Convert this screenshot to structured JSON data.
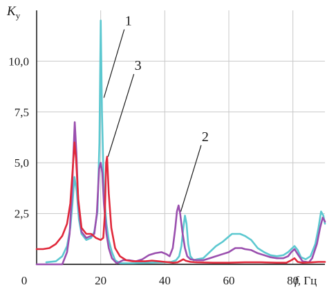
{
  "chart_data": {
    "type": "line",
    "ylabel": "K",
    "ylabel_sub": "у",
    "xlabel_var": "f",
    "xlabel_unit": ", Гц",
    "xlim": [
      0,
      90
    ],
    "ylim": [
      0,
      12.5
    ],
    "x_ticks": [
      0,
      20,
      40,
      60,
      80
    ],
    "y_ticks": [
      2.5,
      5.0,
      7.5,
      10.0
    ],
    "x_tick_labels": [
      "0",
      "20",
      "40",
      "60",
      "80"
    ],
    "y_tick_labels": [
      "2,5",
      "5,0",
      "7,5",
      "10,0"
    ],
    "grid": true,
    "annotations": [
      {
        "text": "1",
        "x": 28,
        "y": 11.7,
        "target": [
          21.0,
          8.2
        ]
      },
      {
        "text": "3",
        "x": 31,
        "y": 9.5,
        "target": [
          22.3,
          5.3
        ]
      },
      {
        "text": "2",
        "x": 52,
        "y": 6.0,
        "target": [
          45.0,
          2.6
        ]
      }
    ],
    "series": [
      {
        "name": "1",
        "color": "#5cc8d0",
        "points": [
          [
            3,
            0.1
          ],
          [
            6,
            0.15
          ],
          [
            8,
            0.4
          ],
          [
            9.5,
            0.9
          ],
          [
            10.5,
            1.8
          ],
          [
            11.2,
            3.0
          ],
          [
            11.8,
            4.3
          ],
          [
            12.5,
            3.6
          ],
          [
            13.2,
            2.2
          ],
          [
            14,
            1.5
          ],
          [
            15.5,
            1.2
          ],
          [
            17,
            1.3
          ],
          [
            18,
            1.6
          ],
          [
            19,
            2.6
          ],
          [
            19.6,
            6.0
          ],
          [
            20.0,
            12.0
          ],
          [
            20.4,
            7.5
          ],
          [
            21,
            3.5
          ],
          [
            21.8,
            2.0
          ],
          [
            22.5,
            1.2
          ],
          [
            23.5,
            0.6
          ],
          [
            24.5,
            0.2
          ],
          [
            26,
            0.05
          ],
          [
            30,
            0.05
          ],
          [
            35,
            0.08
          ],
          [
            40,
            0.1
          ],
          [
            42,
            0.12
          ],
          [
            43.5,
            0.2
          ],
          [
            44.5,
            0.4
          ],
          [
            45.2,
            0.9
          ],
          [
            45.8,
            1.8
          ],
          [
            46.3,
            2.4
          ],
          [
            46.8,
            2.0
          ],
          [
            47.3,
            1.0
          ],
          [
            48,
            0.4
          ],
          [
            49,
            0.2
          ],
          [
            50,
            0.25
          ],
          [
            52,
            0.3
          ],
          [
            54,
            0.6
          ],
          [
            56,
            0.9
          ],
          [
            58,
            1.1
          ],
          [
            59.5,
            1.3
          ],
          [
            61,
            1.5
          ],
          [
            62,
            1.5
          ],
          [
            63.5,
            1.5
          ],
          [
            65,
            1.4
          ],
          [
            67,
            1.2
          ],
          [
            69,
            0.8
          ],
          [
            71,
            0.6
          ],
          [
            73,
            0.45
          ],
          [
            75,
            0.4
          ],
          [
            77,
            0.45
          ],
          [
            78.5,
            0.6
          ],
          [
            79.5,
            0.75
          ],
          [
            80.5,
            0.9
          ],
          [
            81.5,
            0.7
          ],
          [
            82.5,
            0.35
          ],
          [
            84,
            0.25
          ],
          [
            85.5,
            0.4
          ],
          [
            87,
            1.0
          ],
          [
            88,
            1.8
          ],
          [
            88.8,
            2.6
          ],
          [
            89.5,
            2.4
          ],
          [
            90.0,
            2.0
          ]
        ]
      },
      {
        "name": "2",
        "color": "#9a4fae",
        "points": [
          [
            0,
            0.0
          ],
          [
            5,
            0.0
          ],
          [
            8,
            0.0
          ],
          [
            9.5,
            0.6
          ],
          [
            10.3,
            1.5
          ],
          [
            11,
            3.5
          ],
          [
            11.5,
            5.5
          ],
          [
            11.9,
            7.0
          ],
          [
            12.4,
            5.5
          ],
          [
            13,
            3.0
          ],
          [
            14,
            1.6
          ],
          [
            15.5,
            1.3
          ],
          [
            17,
            1.4
          ],
          [
            18,
            1.5
          ],
          [
            18.8,
            2.5
          ],
          [
            19.5,
            4.7
          ],
          [
            20,
            5.0
          ],
          [
            20.5,
            4.5
          ],
          [
            21,
            3.0
          ],
          [
            21.8,
            1.5
          ],
          [
            22.5,
            0.8
          ],
          [
            23.5,
            0.3
          ],
          [
            25,
            0.05
          ],
          [
            27,
            0.2
          ],
          [
            29,
            0.2
          ],
          [
            31,
            0.15
          ],
          [
            33,
            0.25
          ],
          [
            35,
            0.45
          ],
          [
            37,
            0.55
          ],
          [
            39,
            0.6
          ],
          [
            40.5,
            0.5
          ],
          [
            41.5,
            0.4
          ],
          [
            42.5,
            0.8
          ],
          [
            43.3,
            1.8
          ],
          [
            43.8,
            2.6
          ],
          [
            44.3,
            2.9
          ],
          [
            44.8,
            2.5
          ],
          [
            45.5,
            1.6
          ],
          [
            46.3,
            0.8
          ],
          [
            47,
            0.4
          ],
          [
            48,
            0.25
          ],
          [
            50,
            0.2
          ],
          [
            52,
            0.2
          ],
          [
            54,
            0.3
          ],
          [
            56,
            0.4
          ],
          [
            58,
            0.5
          ],
          [
            60,
            0.6
          ],
          [
            61,
            0.7
          ],
          [
            62,
            0.8
          ],
          [
            63,
            0.8
          ],
          [
            64,
            0.8
          ],
          [
            65,
            0.75
          ],
          [
            67,
            0.7
          ],
          [
            69,
            0.55
          ],
          [
            71,
            0.45
          ],
          [
            73,
            0.35
          ],
          [
            75,
            0.3
          ],
          [
            77,
            0.3
          ],
          [
            78.5,
            0.4
          ],
          [
            79.5,
            0.6
          ],
          [
            80.5,
            0.75
          ],
          [
            81.5,
            0.5
          ],
          [
            83,
            0.15
          ],
          [
            85,
            0.1
          ],
          [
            86,
            0.3
          ],
          [
            87.5,
            1.0
          ],
          [
            88.5,
            1.8
          ],
          [
            89.3,
            2.3
          ],
          [
            90.0,
            2.1
          ]
        ]
      },
      {
        "name": "3",
        "color": "#e0283a",
        "points": [
          [
            0,
            0.75
          ],
          [
            2,
            0.75
          ],
          [
            4,
            0.8
          ],
          [
            6,
            1.0
          ],
          [
            8,
            1.4
          ],
          [
            9.5,
            2.0
          ],
          [
            10.5,
            3.0
          ],
          [
            11.3,
            4.8
          ],
          [
            11.8,
            6.0
          ],
          [
            12.3,
            5.2
          ],
          [
            13,
            3.2
          ],
          [
            14,
            1.8
          ],
          [
            15.5,
            1.5
          ],
          [
            17,
            1.5
          ],
          [
            18.5,
            1.3
          ],
          [
            20,
            1.2
          ],
          [
            20.8,
            1.3
          ],
          [
            21.3,
            2.5
          ],
          [
            21.7,
            5.0
          ],
          [
            22.0,
            5.3
          ],
          [
            22.5,
            3.5
          ],
          [
            23.3,
            1.8
          ],
          [
            24.5,
            0.8
          ],
          [
            26,
            0.4
          ],
          [
            28,
            0.2
          ],
          [
            30,
            0.15
          ],
          [
            32,
            0.15
          ],
          [
            34,
            0.15
          ],
          [
            36,
            0.18
          ],
          [
            38,
            0.15
          ],
          [
            40,
            0.12
          ],
          [
            41.5,
            0.1
          ],
          [
            42.5,
            0.08
          ],
          [
            44,
            0.1
          ],
          [
            45,
            0.18
          ],
          [
            45.8,
            0.25
          ],
          [
            46.5,
            0.18
          ],
          [
            48,
            0.12
          ],
          [
            50,
            0.1
          ],
          [
            55,
            0.08
          ],
          [
            60,
            0.08
          ],
          [
            65,
            0.1
          ],
          [
            70,
            0.1
          ],
          [
            75,
            0.08
          ],
          [
            78,
            0.08
          ],
          [
            79.5,
            0.2
          ],
          [
            80.5,
            0.3
          ],
          [
            81.5,
            0.12
          ],
          [
            83,
            0.08
          ],
          [
            86,
            0.1
          ],
          [
            88,
            0.12
          ],
          [
            90.0,
            0.12
          ]
        ]
      }
    ]
  }
}
